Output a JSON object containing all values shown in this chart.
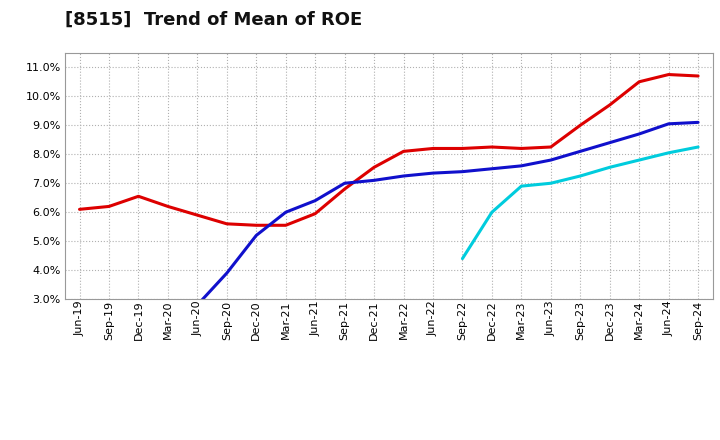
{
  "title": "[8515]  Trend of Mean of ROE",
  "x_labels": [
    "Jun-19",
    "Sep-19",
    "Dec-19",
    "Mar-20",
    "Jun-20",
    "Sep-20",
    "Dec-20",
    "Mar-21",
    "Jun-21",
    "Sep-21",
    "Dec-21",
    "Mar-22",
    "Jun-22",
    "Sep-22",
    "Dec-22",
    "Mar-23",
    "Jun-23",
    "Sep-23",
    "Dec-23",
    "Mar-24",
    "Jun-24",
    "Sep-24"
  ],
  "series_3y": [
    6.1,
    6.2,
    6.55,
    6.2,
    5.9,
    5.6,
    5.55,
    5.55,
    5.95,
    6.8,
    7.55,
    8.1,
    8.2,
    8.2,
    8.25,
    8.2,
    8.25,
    9.0,
    9.7,
    10.5,
    10.75,
    10.7
  ],
  "series_5y": [
    null,
    null,
    null,
    null,
    2.8,
    3.9,
    5.2,
    6.0,
    6.4,
    7.0,
    7.1,
    7.25,
    7.35,
    7.4,
    7.5,
    7.6,
    7.8,
    8.1,
    8.4,
    8.7,
    9.05,
    9.1
  ],
  "series_7y": [
    null,
    null,
    null,
    null,
    null,
    null,
    null,
    null,
    null,
    null,
    null,
    null,
    null,
    4.4,
    6.0,
    6.9,
    7.0,
    7.25,
    7.55,
    7.8,
    8.05,
    8.25
  ],
  "series_10y": [
    null,
    null,
    null,
    null,
    null,
    null,
    null,
    null,
    null,
    null,
    null,
    null,
    null,
    null,
    null,
    null,
    null,
    null,
    null,
    null,
    null,
    null
  ],
  "color_3y": "#dd0000",
  "color_5y": "#1010cc",
  "color_7y": "#00ccdd",
  "color_10y": "#008800",
  "ylim": [
    3.0,
    11.5
  ],
  "yticks": [
    3.0,
    4.0,
    5.0,
    6.0,
    7.0,
    8.0,
    9.0,
    10.0,
    11.0
  ],
  "bg_color": "#ffffff",
  "plot_bg_color": "#ffffff",
  "grid_color": "#b0b0b0",
  "line_width": 2.2,
  "title_fontsize": 13,
  "tick_fontsize": 8
}
